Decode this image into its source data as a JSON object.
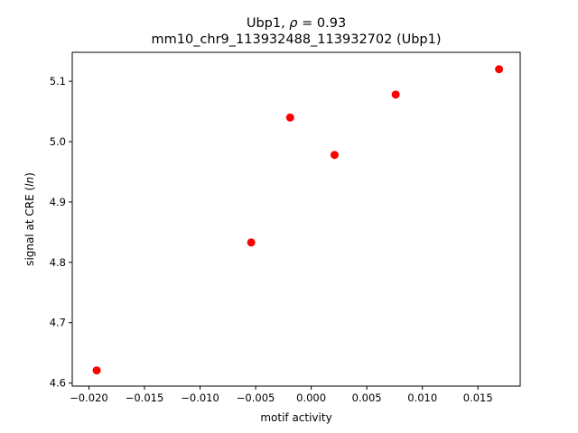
{
  "chart_data": {
    "type": "scatter",
    "title_line1_prefix": "Ubp1, ",
    "title_line1_rho_symbol": "ρ",
    "title_line1_rho_value": " = 0.93",
    "title_line2": "mm10_chr9_113932488_113932702 (Ubp1)",
    "xlabel": "motif activity",
    "ylabel_prefix": "signal at CRE (",
    "ylabel_italic": "ln",
    "ylabel_suffix": ")",
    "xlim": [
      -0.0215,
      0.0188
    ],
    "ylim": [
      4.595,
      5.148
    ],
    "x_ticks": [
      -0.02,
      -0.015,
      -0.01,
      -0.005,
      0.0,
      0.005,
      0.01,
      0.015
    ],
    "x_tick_labels": [
      "−0.020",
      "−0.015",
      "−0.010",
      "−0.005",
      "0.000",
      "0.005",
      "0.010",
      "0.015"
    ],
    "y_ticks": [
      4.6,
      4.7,
      4.8,
      4.9,
      5.0,
      5.1
    ],
    "y_tick_labels": [
      "4.6",
      "4.7",
      "4.8",
      "4.9",
      "5.0",
      "5.1"
    ],
    "marker_color": "#ff0000",
    "points": [
      {
        "x": -0.0193,
        "y": 4.621
      },
      {
        "x": -0.0054,
        "y": 4.833
      },
      {
        "x": -0.0019,
        "y": 5.04
      },
      {
        "x": 0.0021,
        "y": 4.978
      },
      {
        "x": 0.0076,
        "y": 5.078
      },
      {
        "x": 0.0169,
        "y": 5.12
      }
    ]
  }
}
